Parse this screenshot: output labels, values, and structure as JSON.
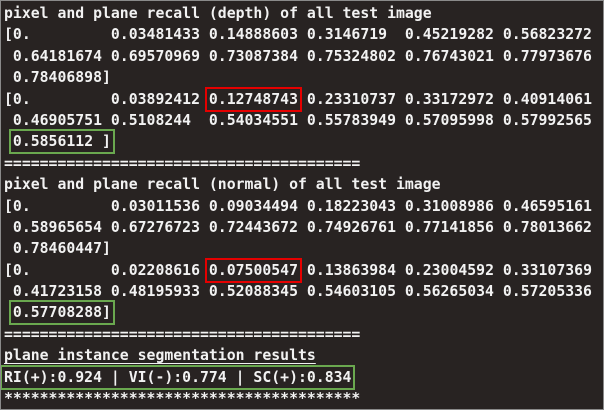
{
  "terminal": {
    "colors": {
      "background": "#282322",
      "text": "#f2f2f2",
      "red_box": "#e50000",
      "green_box": "#6aa84f"
    },
    "lines": [
      {
        "name": "depth-recall-title",
        "segments": [
          {
            "text": "pixel and plane recall (depth) of all test image"
          }
        ]
      },
      {
        "name": "depth-pixel-recall-row-1",
        "segments": [
          {
            "text": "[0.         0.03481433 0.14888603 0.3146719  0.45219282 0.56823272"
          }
        ]
      },
      {
        "name": "depth-pixel-recall-row-2",
        "segments": [
          {
            "text": " 0.64181674 0.69570969 0.73087384 0.75324802 0.76743021 0.77973676"
          }
        ]
      },
      {
        "name": "depth-pixel-recall-row-3",
        "segments": [
          {
            "text": " 0.78406898]"
          }
        ]
      },
      {
        "name": "depth-plane-recall-row-1",
        "segments": [
          {
            "text": "[0.         0.03892412 "
          },
          {
            "text": "0.12748743",
            "box": "red"
          },
          {
            "text": " 0.23310737 0.33172972 0.40914061"
          }
        ]
      },
      {
        "name": "depth-plane-recall-row-2",
        "segments": [
          {
            "text": " 0.46905751 0.5108244  0.54034551 0.55783949 0.57095998 0.57992565"
          }
        ]
      },
      {
        "name": "depth-plane-recall-row-3",
        "segments": [
          {
            "text": " "
          },
          {
            "text": "0.5856112 ]",
            "box": "green"
          }
        ]
      },
      {
        "name": "separator-equals-1",
        "segments": [
          {
            "text": "========================================"
          }
        ]
      },
      {
        "name": "normal-recall-title",
        "segments": [
          {
            "text": "pixel and plane recall (normal) of all test image"
          }
        ]
      },
      {
        "name": "normal-pixel-recall-row-1",
        "segments": [
          {
            "text": "[0.         0.03011536 0.09034494 0.18223043 0.31008986 0.46595161"
          }
        ]
      },
      {
        "name": "normal-pixel-recall-row-2",
        "segments": [
          {
            "text": " 0.58965654 0.67276723 0.72443672 0.74926761 0.77141856 0.78013662"
          }
        ]
      },
      {
        "name": "normal-pixel-recall-row-3",
        "segments": [
          {
            "text": " 0.78460447]"
          }
        ]
      },
      {
        "name": "normal-plane-recall-row-1",
        "segments": [
          {
            "text": "[0.         0.02208616 "
          },
          {
            "text": "0.07500547",
            "box": "red"
          },
          {
            "text": " 0.13863984 0.23004592 0.33107369"
          }
        ]
      },
      {
        "name": "normal-plane-recall-row-2",
        "segments": [
          {
            "text": " 0.41723158 0.48195933 0.52088345 0.54603105 0.56265034 0.57205336"
          }
        ]
      },
      {
        "name": "normal-plane-recall-row-3",
        "segments": [
          {
            "text": " "
          },
          {
            "text": "0.57708288]",
            "box": "green"
          }
        ]
      },
      {
        "name": "separator-equals-2",
        "segments": [
          {
            "text": "========================================"
          }
        ]
      },
      {
        "name": "segmentation-results-title",
        "segments": [
          {
            "text": "plane instance segmentation results",
            "underline": true
          }
        ]
      },
      {
        "name": "segmentation-results-metrics",
        "segments": [
          {
            "text": "RI(+):0.924 | VI(-):0.774 | SC(+):0.834",
            "box": "green"
          }
        ]
      },
      {
        "name": "separator-asterisks",
        "segments": [
          {
            "text": "****************************************"
          }
        ]
      }
    ]
  }
}
